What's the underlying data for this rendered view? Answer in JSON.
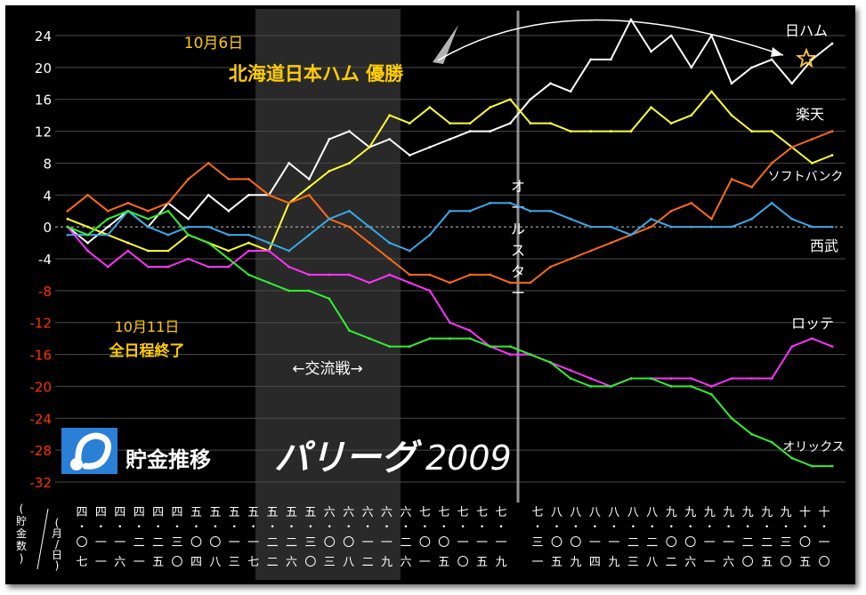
{
  "chart_data": {
    "type": "line",
    "title": "貯金推移",
    "league": "パリーグ",
    "year": "2009",
    "ylim": [
      -32,
      26
    ],
    "y_ticks": [
      "24",
      "20",
      "16",
      "12",
      "8",
      "4",
      "0",
      "-4",
      "-8",
      "-12",
      "-16",
      "-20",
      "-24",
      "-28",
      "-32"
    ],
    "y_tick_colors": [
      "#ffffff",
      "#ffffff",
      "#ffffff",
      "#ffffff",
      "#ffffff",
      "#ffffff",
      "#ffffff",
      "#ffffff",
      "#ff3300",
      "#ff3300",
      "#ff3300",
      "#ff3300",
      "#ff3300",
      "#ff3300",
      "#ff3300"
    ],
    "grid": true,
    "y_axis_label": "(貯金数)",
    "x_axis_label": "(月/日)",
    "x_tick_labels": [
      {
        "month": "四",
        "day": "〇七"
      },
      {
        "month": "四",
        "day": "一一"
      },
      {
        "month": "四",
        "day": "一六"
      },
      {
        "month": "四",
        "day": "二一"
      },
      {
        "month": "四",
        "day": "二五"
      },
      {
        "month": "四",
        "day": "三〇"
      },
      {
        "month": "五",
        "day": "〇四"
      },
      {
        "month": "五",
        "day": "〇八"
      },
      {
        "month": "五",
        "day": "一三"
      },
      {
        "month": "五",
        "day": "一七"
      },
      {
        "month": "五",
        "day": "二二"
      },
      {
        "month": "五",
        "day": "二六"
      },
      {
        "month": "五",
        "day": "三〇"
      },
      {
        "month": "六",
        "day": "〇三"
      },
      {
        "month": "六",
        "day": "〇八"
      },
      {
        "month": "六",
        "day": "一二"
      },
      {
        "month": "六",
        "day": "一九"
      },
      {
        "month": "六",
        "day": "二六"
      },
      {
        "month": "七",
        "day": "〇一"
      },
      {
        "month": "七",
        "day": "〇五"
      },
      {
        "month": "七",
        "day": "一〇"
      },
      {
        "month": "七",
        "day": "一五"
      },
      {
        "month": "七",
        "day": "一九"
      },
      {
        "month": "七",
        "day": "三一"
      },
      {
        "month": "八",
        "day": "〇五"
      },
      {
        "month": "八",
        "day": "〇九"
      },
      {
        "month": "八",
        "day": "一四"
      },
      {
        "month": "八",
        "day": "一九"
      },
      {
        "month": "八",
        "day": "二三"
      },
      {
        "month": "八",
        "day": "二八"
      },
      {
        "month": "九",
        "day": "〇二"
      },
      {
        "month": "九",
        "day": "〇六"
      },
      {
        "month": "九",
        "day": "一一"
      },
      {
        "month": "九",
        "day": "一六"
      },
      {
        "month": "九",
        "day": "二〇"
      },
      {
        "month": "九",
        "day": "二五"
      },
      {
        "month": "九",
        "day": "三〇"
      },
      {
        "month": "十",
        "day": "〇五"
      },
      {
        "month": "十",
        "day": "一〇"
      }
    ],
    "interleague_label": "←交流戦→",
    "allstar_label": "オールスター",
    "annotations": {
      "clinch_date": "10月6日",
      "clinch_text": "北海道日本ハム 優勝",
      "end_date": "10月11日",
      "end_text": "全日程終了"
    },
    "series": [
      {
        "name": "日ハム",
        "color": "#ffffff",
        "values": [
          0,
          -2,
          0,
          2,
          0,
          3,
          1,
          4,
          2,
          4,
          4,
          8,
          6,
          11,
          12,
          10,
          11,
          9,
          10,
          11,
          12,
          12,
          13,
          16,
          18,
          17,
          21,
          21,
          26,
          22,
          24,
          20,
          24,
          18,
          20,
          21,
          18,
          21,
          23
        ]
      },
      {
        "name": "楽天",
        "color": "#ffff33",
        "values": [
          1,
          0,
          -1,
          -2,
          -3,
          -3,
          -1,
          -2,
          -3,
          -2,
          -3,
          3,
          5,
          7,
          8,
          10,
          14,
          13,
          15,
          13,
          13,
          15,
          16,
          13,
          13,
          12,
          12,
          12,
          12,
          15,
          13,
          14,
          17,
          14,
          12,
          12,
          10,
          8,
          9
        ]
      },
      {
        "name": "ソフトバンク",
        "color": "#ff6a1a",
        "values": [
          2,
          4,
          2,
          3,
          2,
          3,
          6,
          8,
          6,
          6,
          4,
          3,
          4,
          1,
          0,
          -2,
          -4,
          -6,
          -6,
          -7,
          -6,
          -6,
          -7,
          -7,
          -5,
          -4,
          -3,
          -2,
          -1,
          0,
          2,
          3,
          1,
          6,
          5,
          8,
          10,
          11,
          12
        ]
      },
      {
        "name": "西武",
        "color": "#3aa8e8",
        "values": [
          -1,
          -1,
          -1,
          2,
          0,
          -1,
          0,
          0,
          -1,
          -1,
          -2,
          -3,
          -1,
          1,
          2,
          0,
          -2,
          -3,
          -1,
          2,
          2,
          3,
          3,
          2,
          2,
          1,
          0,
          0,
          -1,
          1,
          0,
          0,
          0,
          0,
          1,
          3,
          1,
          0,
          0
        ]
      },
      {
        "name": "ロッテ",
        "color": "#ff33ff",
        "values": [
          0,
          -3,
          -5,
          -3,
          -5,
          -5,
          -4,
          -5,
          -5,
          -3,
          -3,
          -5,
          -6,
          -6,
          -6,
          -7,
          -6,
          -7,
          -8,
          -12,
          -13,
          -15,
          -16,
          -16,
          -17,
          -18,
          -19,
          -20,
          -19,
          -19,
          -19,
          -19,
          -20,
          -19,
          -19,
          -19,
          -15,
          -14,
          -15
        ]
      },
      {
        "name": "オリックス",
        "color": "#33ee33",
        "values": [
          0,
          -1,
          1,
          2,
          1,
          2,
          -1,
          -2,
          -4,
          -6,
          -7,
          -8,
          -8,
          -9,
          -13,
          -14,
          -15,
          -15,
          -14,
          -14,
          -14,
          -15,
          -15,
          -16,
          -17,
          -19,
          -20,
          -20,
          -19,
          -19,
          -20,
          -20,
          -21,
          -24,
          -26,
          -27,
          -29,
          -30,
          -30
        ]
      }
    ]
  }
}
